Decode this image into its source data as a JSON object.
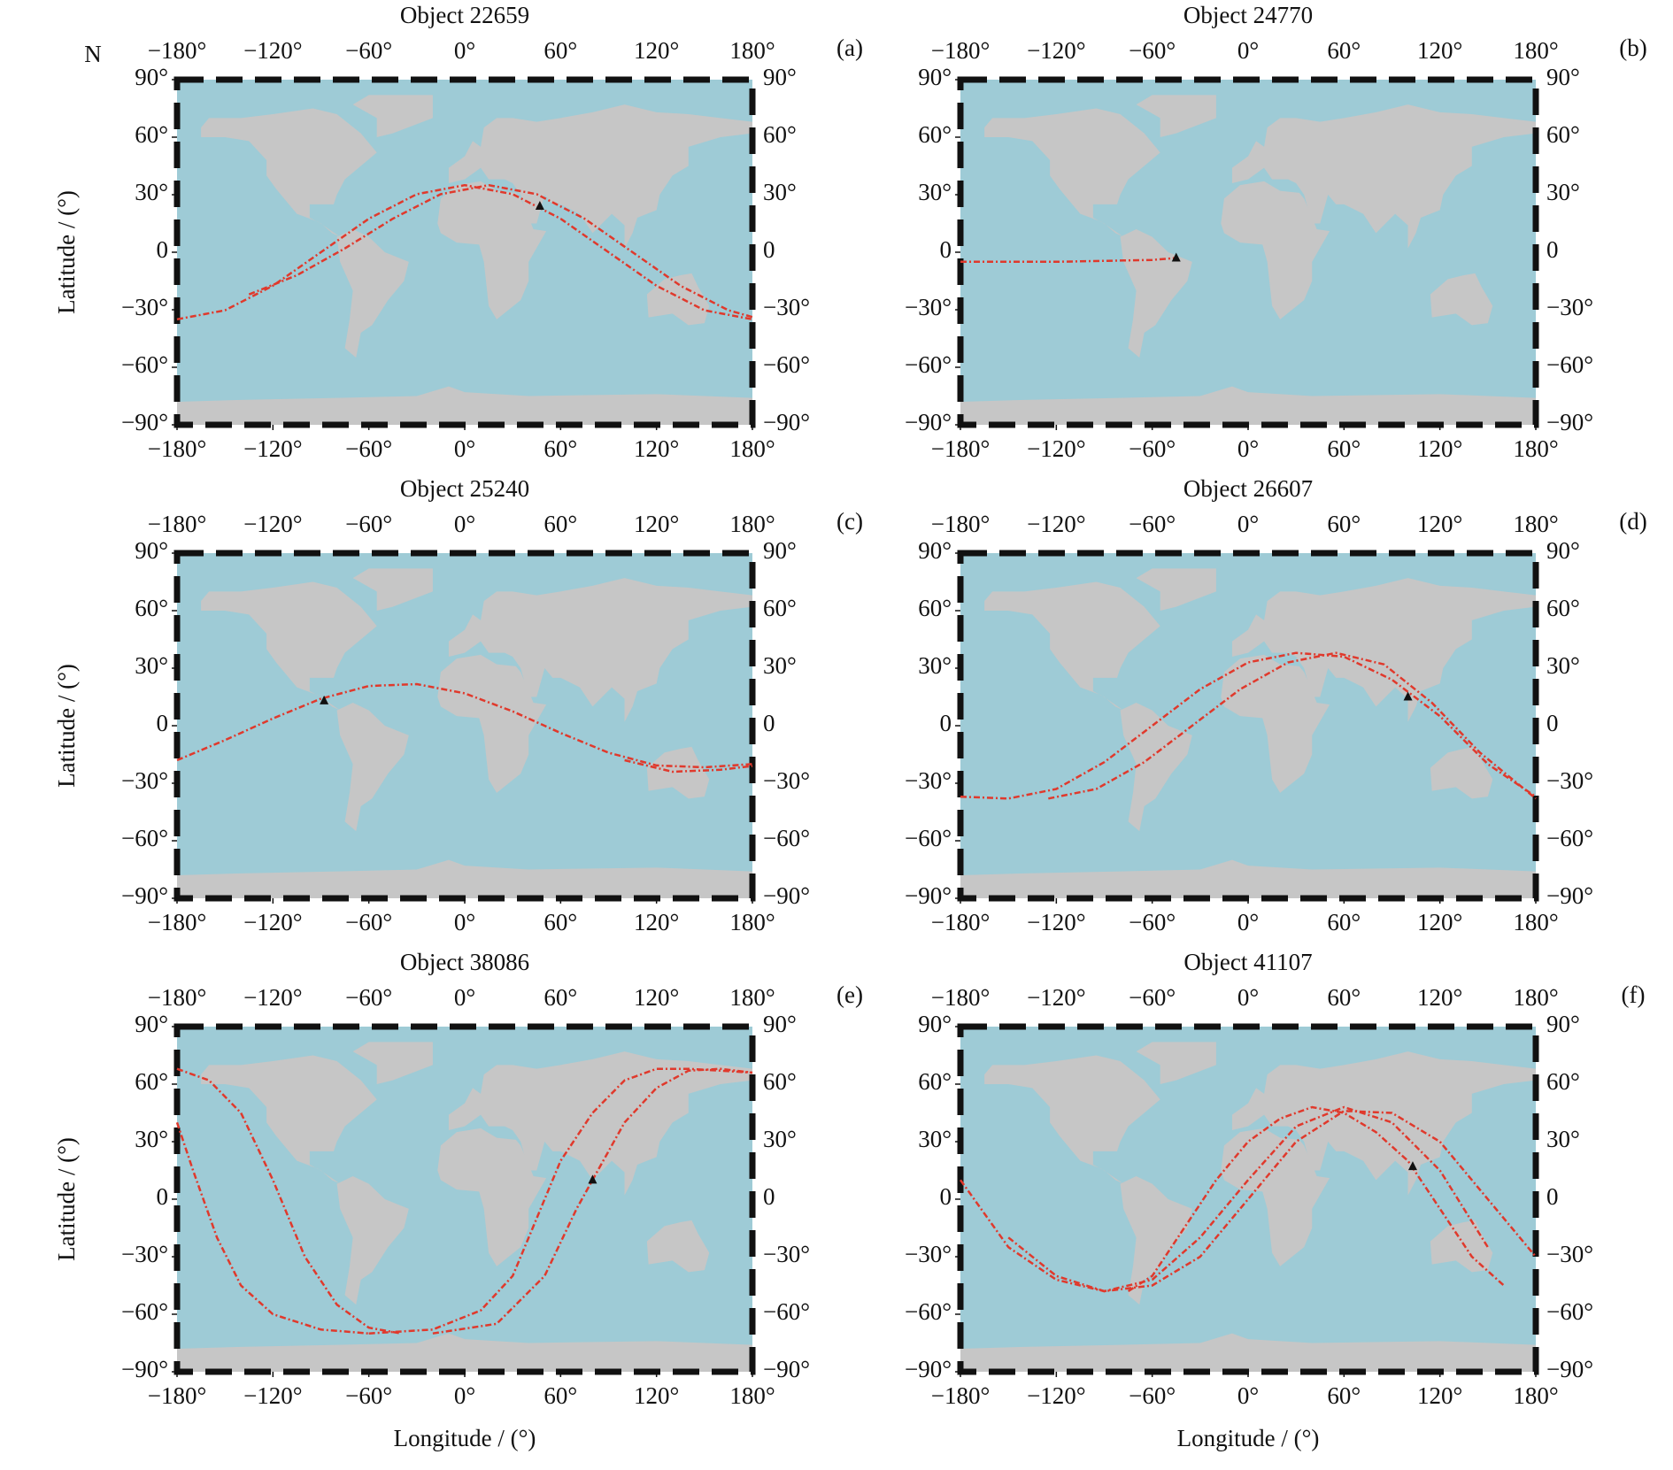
{
  "chart_data": [
    {
      "type": "map",
      "title": "Object 22659",
      "panel_label": "(a)",
      "corner_label": "N",
      "ylabel": "Latitude / (°)",
      "xlim": [
        -180,
        180
      ],
      "ylim": [
        -90,
        90
      ],
      "xticks": [
        {
          "value": -180,
          "label": "−180°"
        },
        {
          "value": -120,
          "label": "−120°"
        },
        {
          "value": -60,
          "label": "−60°"
        },
        {
          "value": 0,
          "label": "0°"
        },
        {
          "value": 60,
          "label": "60°"
        },
        {
          "value": 120,
          "label": "120°"
        },
        {
          "value": 180,
          "label": "180°"
        }
      ],
      "yticks": [
        {
          "value": -90,
          "label": "−90°"
        },
        {
          "value": -60,
          "label": "−60°"
        },
        {
          "value": -30,
          "label": "−30°"
        },
        0,
        {
          "value": 30,
          "label": "30°"
        },
        {
          "value": 60,
          "label": "60°"
        },
        {
          "value": 90,
          "label": "90°"
        }
      ],
      "track_color": "#e0392c",
      "marker_color": "#111111",
      "tracks": [
        {
          "x": [
            -180,
            -150,
            -120,
            -90,
            -60,
            -30,
            0,
            30,
            60,
            90,
            120,
            150,
            180
          ],
          "y": [
            -35,
            -30.3,
            -17.5,
            0,
            17.5,
            30.3,
            35,
            30.3,
            17.5,
            0,
            -17.5,
            -30.3,
            -35
          ]
        },
        {
          "x": [
            -135,
            -105,
            -75,
            -45,
            -15,
            15,
            45,
            75,
            105,
            135,
            165,
            180
          ],
          "y": [
            -22,
            -12,
            2,
            17.5,
            30.3,
            35,
            30.3,
            17.5,
            0,
            -17.5,
            -30.3,
            -33.8
          ]
        }
      ],
      "marker": {
        "x": 47,
        "y": 24
      }
    },
    {
      "type": "map",
      "title": "Object 24770",
      "panel_label": "(b)",
      "xlim": [
        -180,
        180
      ],
      "ylim": [
        -90,
        90
      ],
      "xticks": [
        {
          "value": -180,
          "label": "−180°"
        },
        {
          "value": -120,
          "label": "−120°"
        },
        {
          "value": -60,
          "label": "−60°"
        },
        {
          "value": 0,
          "label": "0°"
        },
        {
          "value": 60,
          "label": "60°"
        },
        {
          "value": 120,
          "label": "120°"
        },
        {
          "value": 180,
          "label": "180°"
        }
      ],
      "yticks": [
        {
          "value": -90,
          "label": "−90°"
        },
        {
          "value": -60,
          "label": "−60°"
        },
        {
          "value": -30,
          "label": "−30°"
        },
        0,
        {
          "value": 30,
          "label": "30°"
        },
        {
          "value": 60,
          "label": "60°"
        },
        {
          "value": 90,
          "label": "90°"
        }
      ],
      "track_color": "#e0392c",
      "marker_color": "#111111",
      "tracks": [
        {
          "x": [
            -180,
            -120,
            -60,
            -45
          ],
          "y": [
            -5,
            -5,
            -4,
            -3
          ]
        }
      ],
      "marker": {
        "x": -45,
        "y": -3
      }
    },
    {
      "type": "map",
      "title": "Object 25240",
      "panel_label": "(c)",
      "ylabel": "Latitude / (°)",
      "xlim": [
        -180,
        180
      ],
      "ylim": [
        -90,
        90
      ],
      "xticks": [
        {
          "value": -180,
          "label": "−180°"
        },
        {
          "value": -120,
          "label": "−120°"
        },
        {
          "value": -60,
          "label": "−60°"
        },
        {
          "value": 0,
          "label": "0°"
        },
        {
          "value": 60,
          "label": "60°"
        },
        {
          "value": 120,
          "label": "120°"
        },
        {
          "value": 180,
          "label": "180°"
        }
      ],
      "yticks": [
        {
          "value": -90,
          "label": "−90°"
        },
        {
          "value": -60,
          "label": "−60°"
        },
        {
          "value": -30,
          "label": "−30°"
        },
        0,
        {
          "value": 30,
          "label": "30°"
        },
        {
          "value": 60,
          "label": "60°"
        },
        {
          "value": 90,
          "label": "90°"
        }
      ],
      "track_color": "#e0392c",
      "marker_color": "#111111",
      "tracks": [
        {
          "x": [
            -180,
            -150,
            -120,
            -90,
            -60,
            -30,
            0,
            30,
            60,
            90,
            120,
            150,
            180
          ],
          "y": [
            -18,
            -7.5,
            3.8,
            14.1,
            20.7,
            21.7,
            16.9,
            7.5,
            -3.8,
            -14.1,
            -20.7,
            -21.7,
            -20
          ]
        },
        {
          "x": [
            100,
            130,
            160,
            180
          ],
          "y": [
            -18,
            -24,
            -23,
            -21
          ]
        }
      ],
      "marker": {
        "x": -88,
        "y": 13
      }
    },
    {
      "type": "map",
      "title": "Object 26607",
      "panel_label": "(d)",
      "xlim": [
        -180,
        180
      ],
      "ylim": [
        -90,
        90
      ],
      "xticks": [
        {
          "value": -180,
          "label": "−180°"
        },
        {
          "value": -120,
          "label": "−120°"
        },
        {
          "value": -60,
          "label": "−60°"
        },
        {
          "value": 0,
          "label": "0°"
        },
        {
          "value": 60,
          "label": "60°"
        },
        {
          "value": 120,
          "label": "120°"
        },
        {
          "value": 180,
          "label": "180°"
        }
      ],
      "yticks": [
        {
          "value": -90,
          "label": "−90°"
        },
        {
          "value": -60,
          "label": "−60°"
        },
        {
          "value": -30,
          "label": "−30°"
        },
        0,
        {
          "value": 30,
          "label": "30°"
        },
        {
          "value": 60,
          "label": "60°"
        },
        {
          "value": 90,
          "label": "90°"
        }
      ],
      "track_color": "#e0392c",
      "marker_color": "#111111",
      "tracks": [
        {
          "x": [
            -180,
            -150,
            -120,
            -90,
            -60,
            -30,
            0,
            30,
            60,
            90,
            120,
            150,
            180
          ],
          "y": [
            -37,
            -38,
            -33,
            -19,
            0,
            19,
            33,
            38,
            36,
            24,
            5,
            -20,
            -37
          ]
        },
        {
          "x": [
            -125,
            -95,
            -65,
            -35,
            -5,
            25,
            55,
            85,
            115,
            145,
            180
          ],
          "y": [
            -38,
            -33,
            -19,
            0,
            19,
            33,
            38,
            32,
            12,
            -14,
            -38
          ]
        }
      ],
      "marker": {
        "x": 100,
        "y": 15
      }
    },
    {
      "type": "map",
      "title": "Object 38086",
      "panel_label": "(e)",
      "ylabel": "Latitude / (°)",
      "xlabel": "Longitude / (°)",
      "xlim": [
        -180,
        180
      ],
      "ylim": [
        -90,
        90
      ],
      "xticks": [
        {
          "value": -180,
          "label": "−180°"
        },
        {
          "value": -120,
          "label": "−120°"
        },
        {
          "value": -60,
          "label": "−60°"
        },
        {
          "value": 0,
          "label": "0°"
        },
        {
          "value": 60,
          "label": "60°"
        },
        {
          "value": 120,
          "label": "120°"
        },
        {
          "value": 180,
          "label": "180°"
        }
      ],
      "yticks": [
        {
          "value": -90,
          "label": "−90°"
        },
        {
          "value": -60,
          "label": "−60°"
        },
        {
          "value": -30,
          "label": "−30°"
        },
        0,
        {
          "value": 30,
          "label": "30°"
        },
        {
          "value": 60,
          "label": "60°"
        },
        {
          "value": 90,
          "label": "90°"
        }
      ],
      "track_color": "#e0392c",
      "marker_color": "#111111",
      "tracks": [
        {
          "x": [
            -180,
            -160,
            -140,
            -120,
            -100,
            -80,
            -60,
            -40
          ],
          "y": [
            68,
            62,
            45,
            10,
            -30,
            -55,
            -67,
            -70
          ]
        },
        {
          "x": [
            -180,
            -170,
            -155,
            -140,
            -120,
            -90,
            -60
          ],
          "y": [
            40,
            15,
            -20,
            -45,
            -60,
            -68,
            -70
          ]
        },
        {
          "x": [
            -60,
            -20,
            10,
            30,
            45,
            60,
            80,
            100,
            120,
            140,
            160,
            180
          ],
          "y": [
            -70,
            -68,
            -58,
            -40,
            -10,
            20,
            45,
            62,
            68,
            68,
            67,
            66
          ]
        },
        {
          "x": [
            -20,
            20,
            50,
            70,
            80,
            100,
            120,
            140,
            160,
            180
          ],
          "y": [
            -70,
            -65,
            -40,
            -5,
            10,
            40,
            58,
            67,
            68,
            66
          ]
        }
      ],
      "marker": {
        "x": 80,
        "y": 10
      }
    },
    {
      "type": "map",
      "title": "Object 41107",
      "panel_label": "(f)",
      "xlabel": "Longitude / (°)",
      "xlim": [
        -180,
        180
      ],
      "ylim": [
        -90,
        90
      ],
      "xticks": [
        {
          "value": -180,
          "label": "−180°"
        },
        {
          "value": -120,
          "label": "−120°"
        },
        {
          "value": -60,
          "label": "−60°"
        },
        {
          "value": 0,
          "label": "0°"
        },
        {
          "value": 60,
          "label": "60°"
        },
        {
          "value": 120,
          "label": "120°"
        },
        {
          "value": 180,
          "label": "180°"
        }
      ],
      "yticks": [
        {
          "value": -90,
          "label": "−90°"
        },
        {
          "value": -60,
          "label": "−60°"
        },
        {
          "value": -30,
          "label": "−30°"
        },
        0,
        {
          "value": 30,
          "label": "30°"
        },
        {
          "value": 60,
          "label": "60°"
        },
        {
          "value": 90,
          "label": "90°"
        }
      ],
      "track_color": "#e0392c",
      "marker_color": "#111111",
      "tracks": [
        {
          "x": [
            -180,
            -150,
            -120,
            -90,
            -60,
            -30,
            0,
            30,
            60,
            90,
            120,
            150
          ],
          "y": [
            10,
            -25,
            -42,
            -48,
            -42,
            -20,
            10,
            38,
            48,
            40,
            15,
            -25
          ]
        },
        {
          "x": [
            -150,
            -120,
            -90,
            -60,
            -30,
            0,
            30,
            60,
            90,
            120,
            150,
            180
          ],
          "y": [
            -20,
            -40,
            -48,
            -45,
            -30,
            0,
            30,
            46,
            45,
            30,
            0,
            -30
          ]
        },
        {
          "x": [
            -75,
            -60,
            -40,
            -20,
            0,
            20,
            40,
            60,
            80,
            100,
            120,
            140,
            160
          ],
          "y": [
            -48,
            -40,
            -15,
            10,
            30,
            42,
            48,
            45,
            35,
            20,
            -5,
            -30,
            -45
          ]
        }
      ],
      "marker": {
        "x": 103,
        "y": 17
      }
    }
  ]
}
